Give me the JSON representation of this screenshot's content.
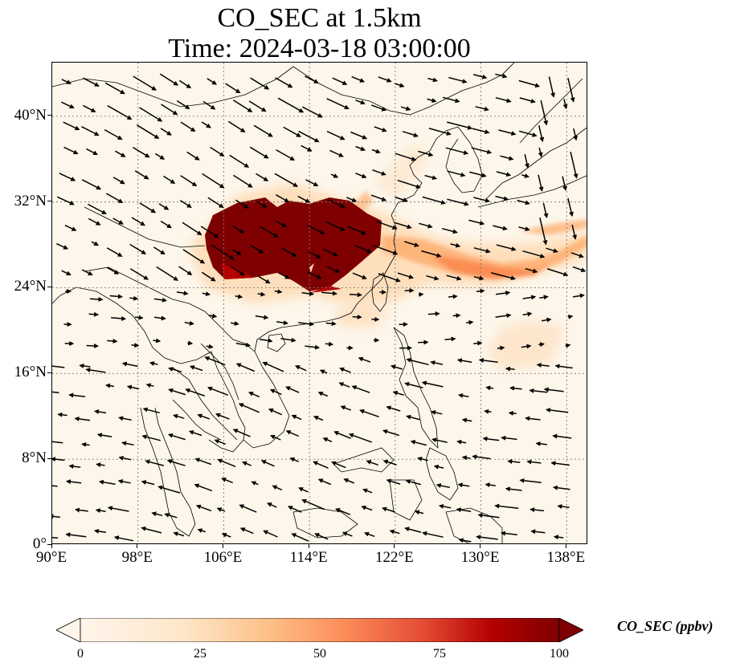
{
  "title": {
    "line1": "CO_SEC at 1.5km",
    "line2": "Time: 2024-03-18 03:00:00"
  },
  "map": {
    "lon_range": [
      90,
      140
    ],
    "lat_range": [
      0,
      45
    ],
    "lat_ticks": [
      {
        "value": 0,
        "label": "0°"
      },
      {
        "value": 8,
        "label": "8°N"
      },
      {
        "value": 16,
        "label": "16°N"
      },
      {
        "value": 24,
        "label": "24°N"
      },
      {
        "value": 32,
        "label": "32°N"
      },
      {
        "value": 40,
        "label": "40°N"
      }
    ],
    "lon_ticks": [
      {
        "value": 90,
        "label": "90°E"
      },
      {
        "value": 98,
        "label": "98°E"
      },
      {
        "value": 106,
        "label": "106°E"
      },
      {
        "value": 114,
        "label": "114°E"
      },
      {
        "value": 122,
        "label": "122°E"
      },
      {
        "value": 130,
        "label": "130°E"
      },
      {
        "value": 138,
        "label": "138°E"
      }
    ],
    "gridlines": "dotted",
    "plume_core_region": "South China (approx. 104°E–119°E, 24°N–31°N)",
    "colors": {
      "background": "#fdf6ea",
      "low": "#fff5eb",
      "mid": "#fdae6b",
      "high": "#d94801",
      "max": "#7f0000",
      "coastline": "#000000",
      "wind_arrow": "#000000",
      "grid": "#7a7a7a"
    }
  },
  "colorbar": {
    "label": "CO_SEC (ppbv)",
    "min": 0,
    "max": 100,
    "ticks": [
      {
        "value": 0,
        "label": "0"
      },
      {
        "value": 25,
        "label": "25"
      },
      {
        "value": 50,
        "label": "50"
      },
      {
        "value": 75,
        "label": "75"
      },
      {
        "value": 100,
        "label": "100"
      }
    ],
    "extend": "both",
    "colormap": "OrRd"
  }
}
